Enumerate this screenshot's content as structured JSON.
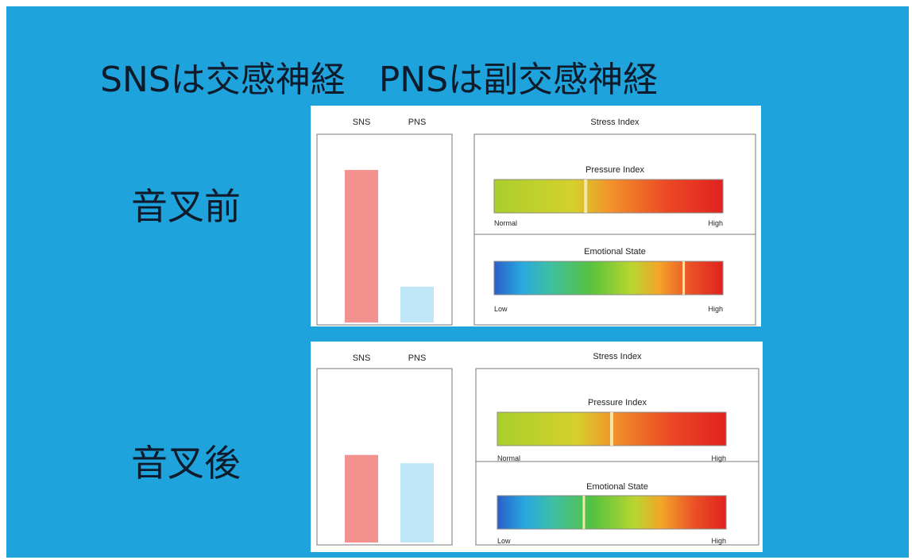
{
  "heading": {
    "sns_text": "SNSは交感神経",
    "pns_text": "PNSは副交感神経"
  },
  "rows": [
    {
      "label": "音叉前"
    },
    {
      "label": "音叉後"
    }
  ],
  "colors": {
    "background": "#1ea3dc",
    "sns_bar": "#f3918f",
    "pns_bar": "#bfe6f7"
  },
  "chart_data": [
    {
      "type": "bar",
      "panel": "音叉前",
      "categories": [
        "SNS",
        "PNS"
      ],
      "values": [
        0.85,
        0.2
      ],
      "ylim": [
        0,
        1
      ],
      "gauges": {
        "title": "Stress Index",
        "pressure": {
          "label": "Pressure Index",
          "low_label": "Normal",
          "high_label": "High",
          "marker": 0.4
        },
        "emotional": {
          "label": "Emotional State",
          "low_label": "Low",
          "high_label": "High",
          "marker": 0.83
        }
      }
    },
    {
      "type": "bar",
      "panel": "音叉後",
      "categories": [
        "SNS",
        "PNS"
      ],
      "values": [
        0.53,
        0.48
      ],
      "ylim": [
        0,
        1
      ],
      "gauges": {
        "title": "Stress Index",
        "pressure": {
          "label": "Pressure Index",
          "low_label": "Normal",
          "high_label": "High",
          "marker": 0.5
        },
        "emotional": {
          "label": "Emotional State",
          "low_label": "Low",
          "high_label": "High",
          "marker": 0.38
        }
      }
    }
  ]
}
